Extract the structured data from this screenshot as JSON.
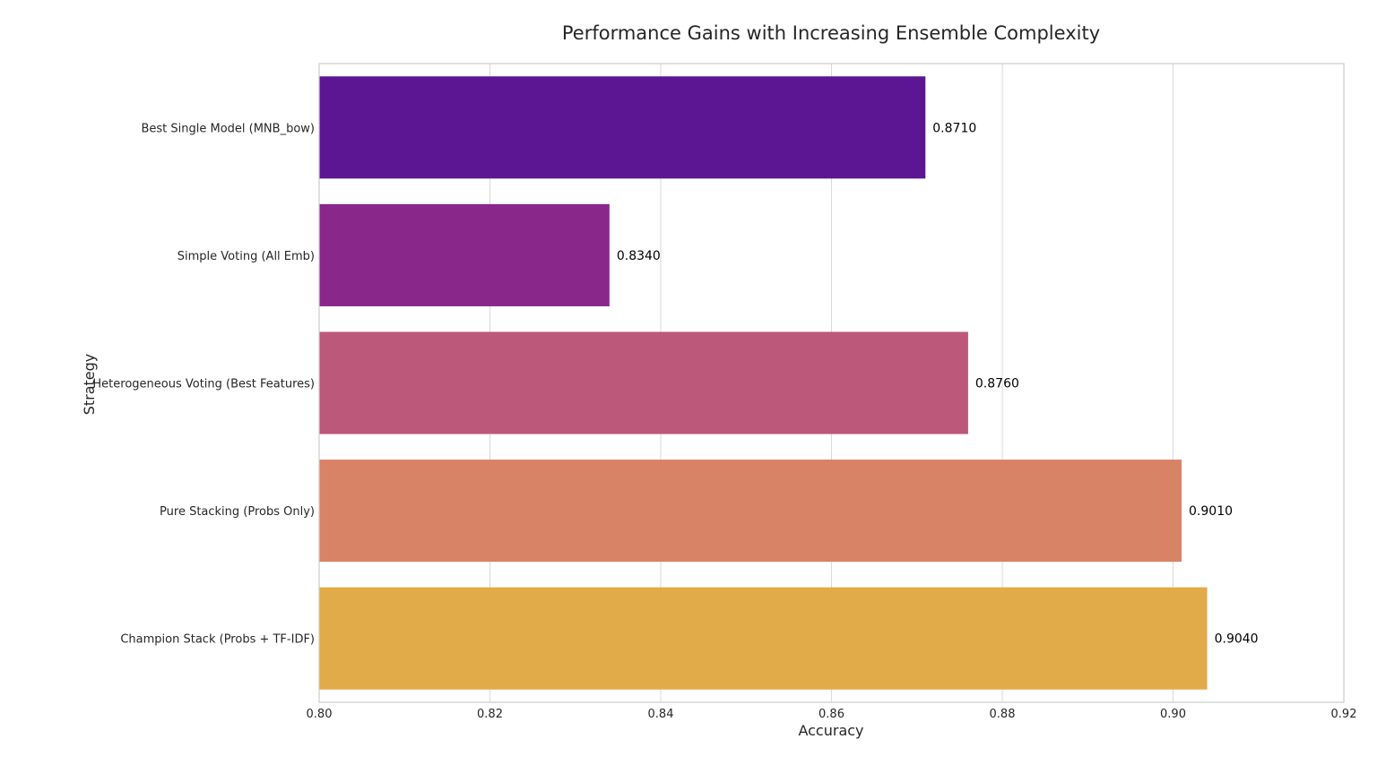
{
  "chart_data": {
    "type": "bar",
    "orientation": "horizontal",
    "title": "Performance Gains with Increasing Ensemble Complexity",
    "xlabel": "Accuracy",
    "ylabel": "Strategy",
    "xlim": [
      0.8,
      0.92
    ],
    "xticks": [
      "0.80",
      "0.82",
      "0.84",
      "0.86",
      "0.88",
      "0.90",
      "0.92"
    ],
    "grid": true,
    "categories": [
      "Best Single Model (MNB_bow)",
      "Simple Voting (All Emb)",
      "Heterogeneous Voting (Best Features)",
      "Pure Stacking (Probs Only)",
      "Champion Stack (Probs + TF-IDF)"
    ],
    "values": [
      0.871,
      0.834,
      0.876,
      0.901,
      0.904
    ],
    "value_labels": [
      "0.8710",
      "0.8340",
      "0.8760",
      "0.9010",
      "0.9040"
    ],
    "colors": [
      "#5c1693",
      "#8a278b",
      "#bc5879",
      "#d98366",
      "#e2ab49"
    ]
  }
}
